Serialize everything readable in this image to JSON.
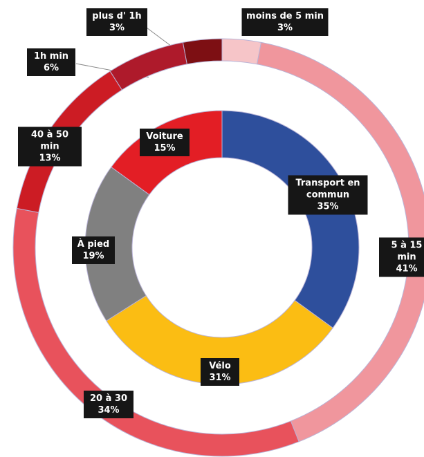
{
  "chart_data": [
    {
      "type": "donut",
      "categories": [
        "moins de 5 min",
        "5 à 15 min",
        "20 à 30",
        "40 à 50 min",
        "1h min",
        "plus d' 1h"
      ],
      "values": [
        3,
        41,
        34,
        13,
        6,
        3
      ],
      "value_labels": [
        "3%",
        "41%",
        "34%",
        "13%",
        "6%",
        "3%"
      ],
      "colors": [
        "#f6c5c8",
        "#f0969d",
        "#e8525c",
        "#cc1c24",
        "#ae1a2b",
        "#7d0f13"
      ]
    },
    {
      "type": "donut",
      "categories": [
        "Transport en commun",
        "Vélo",
        "À pied",
        "Voiture"
      ],
      "values": [
        35,
        31,
        19,
        15
      ],
      "value_labels": [
        "35%",
        "31%",
        "19%",
        "15%"
      ],
      "colors": [
        "#2e4f9c",
        "#fbbd13",
        "#808080",
        "#e31e25"
      ]
    }
  ]
}
